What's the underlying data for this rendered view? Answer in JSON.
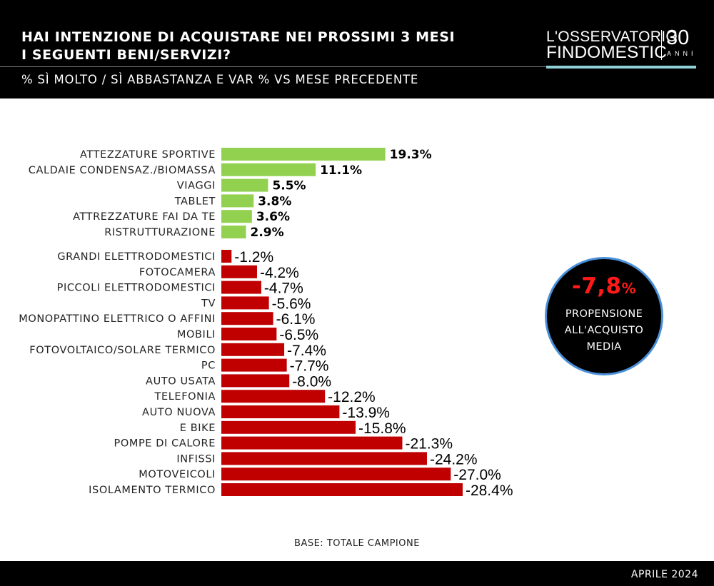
{
  "header": {
    "title_line1": "HAI INTENZIONE DI ACQUISTARE NEI PROSSIMI 3 MESI",
    "title_line2": "I SEGUENTI BENI/SERVIZI?",
    "subtitle": "% SÌ MOLTO / SÌ ABBASTANZA E VAR % VS MESE PRECEDENTE"
  },
  "logo": {
    "line1": "L'OSSERVATORIO",
    "line2": "FINDOMESTIC",
    "number": "30",
    "anni": "ANNI"
  },
  "badge": {
    "value": "-7,8",
    "unit": "%",
    "line1": "PROPENSIONE",
    "line2": "ALL'ACQUISTO",
    "line3": "MEDIA"
  },
  "base_note": "BASE: TOTALE CAMPIONE",
  "footer": {
    "date": "APRILE 2024"
  },
  "colors": {
    "positive": "#92d050",
    "negative": "#c00000"
  },
  "chart_data": {
    "type": "bar",
    "orientation": "horizontal",
    "title": "HAI INTENZIONE DI ACQUISTARE NEI PROSSIMI 3 MESI I SEGUENTI BENI/SERVIZI?",
    "unit": "%",
    "groups": [
      {
        "categories": [
          "ATTEZZATURE SPORTIVE",
          "CALDAIE CONDENSAZ./BIOMASSA",
          "VIAGGI",
          "TABLET",
          "ATTREZZATURE FAI DA TE",
          "RISTRUTTURAZIONE"
        ],
        "values": [
          19.3,
          11.1,
          5.5,
          3.8,
          3.6,
          2.9
        ],
        "labels": [
          "19.3%",
          "11.1%",
          "5.5%",
          "3.8%",
          "3.6%",
          "2.9%"
        ]
      },
      {
        "categories": [
          "GRANDI ELETTRODOMESTICI",
          "FOTOCAMERA",
          "PICCOLI ELETTRODOMESTICI",
          "TV",
          "MONOPATTINO ELETTRICO O AFFINI",
          "MOBILI",
          "FOTOVOLTAICO/SOLARE TERMICO",
          "PC",
          "AUTO USATA",
          "TELEFONIA",
          "AUTO NUOVA",
          "E BIKE",
          "POMPE DI CALORE",
          "INFISSI",
          "MOTOVEICOLI",
          "ISOLAMENTO TERMICO"
        ],
        "values": [
          -1.2,
          -4.2,
          -4.7,
          -5.6,
          -6.1,
          -6.5,
          -7.4,
          -7.7,
          -8.0,
          -12.2,
          -13.9,
          -15.8,
          -21.3,
          -24.2,
          -27.0,
          -28.4
        ],
        "labels": [
          "-1.2%",
          "-4.2%",
          "-4.7%",
          "-5.6%",
          "-6.1%",
          "-6.5%",
          "-7.4%",
          "-7.7%",
          "-8.0%",
          "-12.2%",
          "-13.9%",
          "-15.8%",
          "-21.3%",
          "-24.2%",
          "-27.0%",
          "-28.4%"
        ]
      }
    ]
  }
}
